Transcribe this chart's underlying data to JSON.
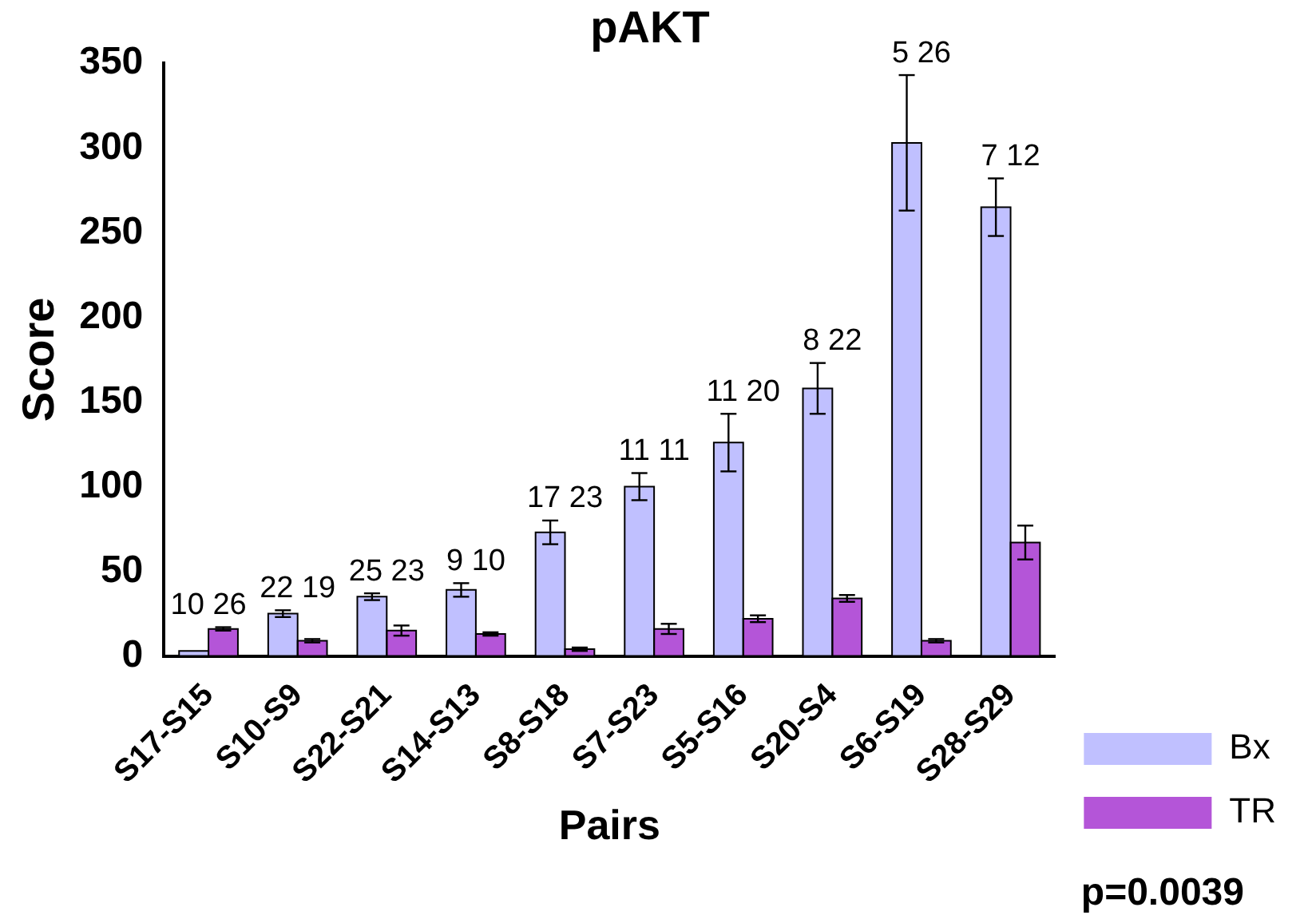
{
  "chart_data": {
    "type": "bar",
    "title": "pAKT",
    "xlabel": "Pairs",
    "ylabel": "Score",
    "categories": [
      "S17-S15",
      "S10-S9",
      "S22-S21",
      "S14-S13",
      "S8-S18",
      "S7-S23",
      "S5-S16",
      "S20-S4",
      "S6-S19",
      "S28-S29"
    ],
    "series": [
      {
        "name": "Bx",
        "color": "#c0c0ff",
        "values": [
          3,
          25,
          35,
          39,
          73,
          100,
          126,
          158,
          303,
          265
        ],
        "errors": [
          null,
          2,
          2,
          4,
          7,
          8,
          17,
          15,
          40,
          17
        ]
      },
      {
        "name": "TR",
        "color": "#b455d8",
        "values": [
          16,
          9,
          15,
          13,
          4,
          16,
          22,
          34,
          9,
          67
        ],
        "errors": [
          1,
          1,
          3,
          1,
          1,
          3,
          2,
          2,
          1,
          10
        ]
      }
    ],
    "ylim": [
      0,
      350
    ],
    "yticks": [
      0,
      50,
      100,
      150,
      200,
      250,
      300,
      350
    ],
    "grid": false,
    "legend": "right",
    "annotations": [
      "10 26",
      "22 19",
      "25 23",
      "9 10",
      "17 23",
      "11 11",
      "11 20",
      "8 22",
      "5 26",
      "7 12",
      "p=0.0039"
    ]
  }
}
